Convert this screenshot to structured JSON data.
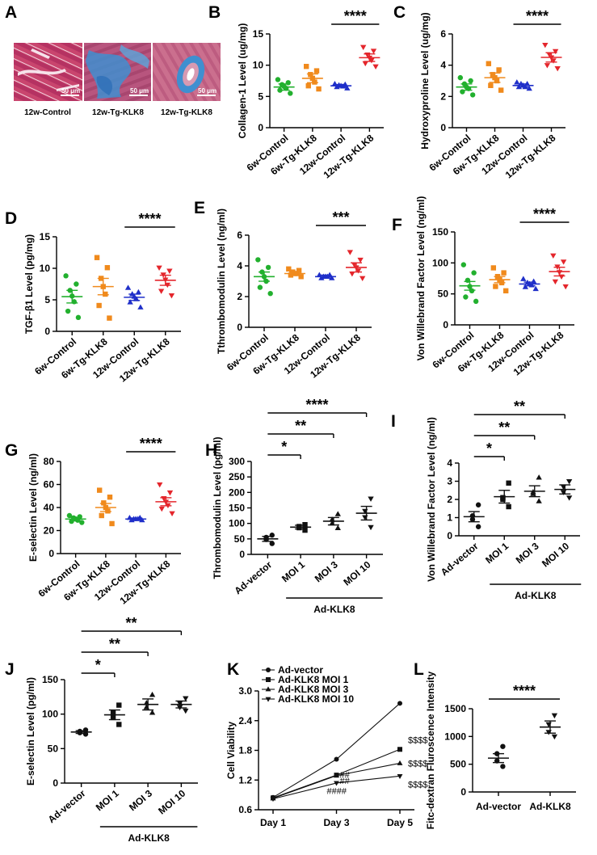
{
  "figure": {
    "colors": {
      "green": "#22b02e",
      "orange": "#f08a1c",
      "blue": "#1f2fc9",
      "red": "#e4262c",
      "black": "#111111"
    }
  },
  "micrographs": {
    "label": "A",
    "scale_bar": "50 μm",
    "captions": [
      "12w-Control",
      "12w-Tg-KLK8",
      "12w-Tg-KLK8"
    ],
    "image_names": [
      "trichrome-control-image",
      "trichrome-klk8-perivascular-image",
      "trichrome-klk8-vessel-image"
    ]
  },
  "chart_data": [
    {
      "id": "B",
      "label": "B",
      "type": "scatter",
      "ylabel": "Collagen-1 Level (ug/mg)",
      "ylim": [
        0,
        15
      ],
      "yticks": [
        0,
        5,
        10,
        15
      ],
      "categories": [
        "6w-Control",
        "6w-Tg-KLK8",
        "12w-Control",
        "12w-Tg-KLK8"
      ],
      "colors": [
        "#22b02e",
        "#f08a1c",
        "#1f2fc9",
        "#e4262c"
      ],
      "markers": [
        "circle",
        "square",
        "triangle-up",
        "triangle-down"
      ],
      "means": [
        6.5,
        7.9,
        6.7,
        11.2
      ],
      "sems": [
        0.5,
        0.7,
        0.2,
        0.6
      ],
      "points": [
        [
          5.5,
          6.0,
          6.3,
          6.6,
          6.9,
          7.2,
          7.7
        ],
        [
          6.2,
          6.7,
          7.3,
          7.9,
          8.5,
          9.1,
          9.8
        ],
        [
          6.3,
          6.5,
          6.6,
          6.7,
          6.8,
          6.9,
          7.0
        ],
        [
          9.8,
          10.3,
          10.8,
          11.2,
          11.7,
          12.3,
          12.9
        ]
      ],
      "brackets": [
        {
          "from": 2,
          "to": 3,
          "label": "****"
        }
      ]
    },
    {
      "id": "C",
      "label": "C",
      "type": "scatter",
      "ylabel": "Hydroxyproline Level (ug/mg)",
      "ylim": [
        0,
        6
      ],
      "yticks": [
        0,
        2,
        4,
        6
      ],
      "categories": [
        "6w-Control",
        "6w-Tg-KLK8",
        "12w-Control",
        "12w-Tg-KLK8"
      ],
      "colors": [
        "#22b02e",
        "#f08a1c",
        "#1f2fc9",
        "#e4262c"
      ],
      "markers": [
        "circle",
        "square",
        "triangle-up",
        "triangle-down"
      ],
      "means": [
        2.6,
        3.2,
        2.7,
        4.5
      ],
      "sems": [
        0.2,
        0.3,
        0.1,
        0.3
      ],
      "points": [
        [
          2.1,
          2.3,
          2.5,
          2.6,
          2.8,
          3.0,
          3.2
        ],
        [
          2.4,
          2.7,
          3.0,
          3.2,
          3.4,
          3.7,
          4.1
        ],
        [
          2.5,
          2.6,
          2.6,
          2.7,
          2.8,
          2.8,
          2.9
        ],
        [
          3.8,
          4.0,
          4.3,
          4.5,
          4.7,
          4.9,
          5.3
        ]
      ],
      "brackets": [
        {
          "from": 2,
          "to": 3,
          "label": "****"
        }
      ]
    },
    {
      "id": "D",
      "label": "D",
      "type": "scatter",
      "ylabel": "TGF-β1 Level (pg/mg)",
      "ylim": [
        0,
        15
      ],
      "yticks": [
        0,
        5,
        10,
        15
      ],
      "categories": [
        "6w-Control",
        "6w-Tg-KLK8",
        "12w-Control",
        "12w-Tg-KLK8"
      ],
      "colors": [
        "#22b02e",
        "#f08a1c",
        "#1f2fc9",
        "#e4262c"
      ],
      "markers": [
        "circle",
        "square",
        "triangle-up",
        "triangle-down"
      ],
      "means": [
        5.5,
        7.1,
        5.4,
        8.1
      ],
      "sems": [
        1.0,
        1.3,
        0.5,
        0.8
      ],
      "points": [
        [
          2.2,
          3.2,
          4.7,
          5.6,
          6.5,
          7.5,
          8.8
        ],
        [
          2.1,
          4.1,
          5.9,
          7.1,
          8.4,
          10.1,
          11.7
        ],
        [
          3.8,
          4.6,
          5.1,
          5.5,
          5.9,
          6.2,
          6.9
        ],
        [
          5.7,
          6.4,
          7.4,
          8.2,
          9.0,
          9.6,
          10.1
        ]
      ],
      "brackets": [
        {
          "from": 2,
          "to": 3,
          "label": "****"
        }
      ]
    },
    {
      "id": "E",
      "label": "E",
      "type": "scatter",
      "ylabel": "Tthrombomodulin Level (ng/ml)",
      "ylim": [
        0,
        6
      ],
      "yticks": [
        0,
        2,
        4,
        6
      ],
      "categories": [
        "6w-Control",
        "6w-Tg-KLK8",
        "12w-Control",
        "12w-Tg-KLK8"
      ],
      "colors": [
        "#22b02e",
        "#f08a1c",
        "#1f2fc9",
        "#e4262c"
      ],
      "markers": [
        "circle",
        "square",
        "triangle-up",
        "triangle-down"
      ],
      "means": [
        3.3,
        3.5,
        3.3,
        3.9
      ],
      "sems": [
        0.3,
        0.1,
        0.1,
        0.3
      ],
      "points": [
        [
          2.2,
          2.6,
          3.0,
          3.3,
          3.6,
          3.9,
          4.4
        ],
        [
          3.3,
          3.4,
          3.5,
          3.5,
          3.6,
          3.7,
          3.8
        ],
        [
          3.2,
          3.2,
          3.3,
          3.3,
          3.3,
          3.4,
          3.4
        ],
        [
          3.2,
          3.5,
          3.7,
          3.9,
          4.1,
          4.4,
          4.9
        ]
      ],
      "brackets": [
        {
          "from": 2,
          "to": 3,
          "label": "***"
        }
      ]
    },
    {
      "id": "F",
      "label": "F",
      "type": "scatter",
      "ylabel": "Von Willebrand Factor Level (ng/ml)",
      "ylim": [
        0,
        150
      ],
      "yticks": [
        0,
        50,
        100,
        150
      ],
      "categories": [
        "6w-Control",
        "6w-Tg-KLK8",
        "12w-Control",
        "12w-Tg-KLK8"
      ],
      "colors": [
        "#22b02e",
        "#f08a1c",
        "#1f2fc9",
        "#e4262c"
      ],
      "markers": [
        "circle",
        "square",
        "triangle-up",
        "triangle-down"
      ],
      "means": [
        63,
        73,
        66,
        86
      ],
      "sems": [
        7,
        5,
        3,
        7
      ],
      "points": [
        [
          38,
          45,
          55,
          62,
          72,
          84,
          97
        ],
        [
          55,
          62,
          68,
          73,
          78,
          84,
          92
        ],
        [
          58,
          61,
          64,
          66,
          68,
          70,
          74
        ],
        [
          62,
          70,
          78,
          85,
          94,
          102,
          112
        ]
      ],
      "brackets": [
        {
          "from": 2,
          "to": 3,
          "label": "****"
        }
      ]
    },
    {
      "id": "G",
      "label": "G",
      "type": "scatter",
      "ylabel": "E-selectin Level (ng/ml)",
      "ylim": [
        0,
        80
      ],
      "yticks": [
        0,
        20,
        40,
        60,
        80
      ],
      "categories": [
        "6w-Control",
        "6w-Tg-KLK8",
        "12w-Control",
        "12w-Tg-KLK8"
      ],
      "colors": [
        "#22b02e",
        "#f08a1c",
        "#1f2fc9",
        "#e4262c"
      ],
      "markers": [
        "circle",
        "square",
        "triangle-up",
        "triangle-down"
      ],
      "means": [
        30,
        40,
        30,
        45
      ],
      "sems": [
        1.5,
        3.5,
        0.8,
        3.5
      ],
      "points": [
        [
          27,
          28,
          29,
          30,
          31,
          32,
          33
        ],
        [
          26,
          33,
          37,
          40,
          44,
          49,
          55
        ],
        [
          29,
          29,
          30,
          30,
          30,
          31,
          31
        ],
        [
          35,
          39,
          42,
          45,
          48,
          53,
          60
        ]
      ],
      "brackets": [
        {
          "from": 2,
          "to": 3,
          "label": "****"
        }
      ]
    },
    {
      "id": "H",
      "label": "H",
      "type": "scatter",
      "ylabel": "Thrombomodulin Level (pg/ml)",
      "ylim": [
        0,
        300
      ],
      "yticks": [
        0,
        50,
        100,
        150,
        200,
        250,
        300
      ],
      "categories": [
        "Ad-vector",
        "MOI 1",
        "MOI 3",
        "MOI 10"
      ],
      "colors": [
        "#111111",
        "#111111",
        "#111111",
        "#111111"
      ],
      "markers": [
        "circle",
        "square",
        "triangle-up",
        "triangle-down"
      ],
      "means": [
        50,
        88,
        107,
        133
      ],
      "sems": [
        8,
        6,
        12,
        22
      ],
      "points": [
        [
          35,
          48,
          55,
          62
        ],
        [
          78,
          86,
          90,
          96
        ],
        [
          85,
          100,
          112,
          130
        ],
        [
          88,
          120,
          140,
          180
        ]
      ],
      "brackets": [
        {
          "from": 0,
          "to": 1,
          "label": "*"
        },
        {
          "from": 0,
          "to": 2,
          "label": "**"
        },
        {
          "from": 0,
          "to": 3,
          "label": "****"
        }
      ],
      "group_label": "Ad-KLK8"
    },
    {
      "id": "I",
      "label": "I",
      "type": "scatter",
      "ylabel": "Von Willebrand Factor Level (ng/ml)",
      "ylim": [
        0,
        4
      ],
      "yticks": [
        0,
        1,
        2,
        3,
        4
      ],
      "categories": [
        "Ad-vector",
        "MOI 1",
        "MOI 3",
        "MOI 10"
      ],
      "colors": [
        "#111111",
        "#111111",
        "#111111",
        "#111111"
      ],
      "markers": [
        "circle",
        "square",
        "triangle-up",
        "triangle-down"
      ],
      "means": [
        1.05,
        2.15,
        2.45,
        2.55
      ],
      "sems": [
        0.28,
        0.35,
        0.3,
        0.25
      ],
      "points": [
        [
          0.5,
          0.9,
          1.1,
          1.7
        ],
        [
          1.6,
          2.0,
          2.1,
          2.9
        ],
        [
          1.9,
          2.3,
          2.4,
          3.2
        ],
        [
          2.1,
          2.4,
          2.7,
          3.0
        ]
      ],
      "brackets": [
        {
          "from": 0,
          "to": 1,
          "label": "*"
        },
        {
          "from": 0,
          "to": 2,
          "label": "**"
        },
        {
          "from": 0,
          "to": 3,
          "label": "**"
        }
      ],
      "group_label": "Ad-KLK8"
    },
    {
      "id": "J",
      "label": "J",
      "type": "scatter",
      "ylabel": "E-selectin Level (pg/ml)",
      "ylim": [
        0,
        150
      ],
      "yticks": [
        0,
        50,
        100,
        150
      ],
      "categories": [
        "Ad-vector",
        "MOI 1",
        "MOI 3",
        "MOI 10"
      ],
      "colors": [
        "#111111",
        "#111111",
        "#111111",
        "#111111"
      ],
      "markers": [
        "circle",
        "square",
        "triangle-up",
        "triangle-down"
      ],
      "means": [
        74,
        99,
        114,
        114
      ],
      "sems": [
        2,
        7,
        8,
        5
      ],
      "points": [
        [
          71,
          73,
          75,
          77
        ],
        [
          85,
          95,
          102,
          113
        ],
        [
          102,
          110,
          116,
          128
        ],
        [
          105,
          110,
          116,
          123
        ]
      ],
      "brackets": [
        {
          "from": 0,
          "to": 1,
          "label": "*"
        },
        {
          "from": 0,
          "to": 2,
          "label": "**"
        },
        {
          "from": 0,
          "to": 3,
          "label": "**"
        }
      ],
      "group_label": "Ad-KLK8"
    },
    {
      "id": "K",
      "label": "K",
      "type": "line",
      "ylabel": "Cell Viability",
      "ylim": [
        0.6,
        3.0
      ],
      "yticks": [
        0.6,
        1.2,
        1.8,
        2.4,
        3.0
      ],
      "x": [
        "Day 1",
        "Day 3",
        "Day 5"
      ],
      "series": [
        {
          "name": "Ad-vector",
          "marker": "circle",
          "values": [
            0.85,
            1.62,
            2.75
          ],
          "annot": [
            "",
            "",
            ""
          ]
        },
        {
          "name": "Ad-KLK8 MOI 1",
          "marker": "square",
          "values": [
            0.84,
            1.3,
            1.82
          ],
          "annot": [
            "",
            "",
            "$$$$"
          ]
        },
        {
          "name": "Ad-KLK8 MOI 3",
          "marker": "triangle-up",
          "values": [
            0.83,
            1.29,
            1.54
          ],
          "annot": [
            "",
            "##",
            "$$$$"
          ]
        },
        {
          "name": "Ad-KLK8 MOI 10",
          "marker": "triangle-down",
          "values": [
            0.82,
            1.14,
            1.28
          ],
          "annot": [
            "",
            "##",
            "$$$$"
          ]
        }
      ],
      "extra_annot": {
        "text": "####",
        "x": 1,
        "y": 0.98
      }
    },
    {
      "id": "L",
      "label": "L",
      "type": "scatter",
      "ylabel": "Fitc-dextran Fluroscence Intensity",
      "ylim": [
        0,
        1500
      ],
      "yticks": [
        0,
        500,
        1000,
        1500
      ],
      "categories": [
        "Ad-vector",
        "Ad-KLK8"
      ],
      "colors": [
        "#111111",
        "#111111"
      ],
      "markers": [
        "circle",
        "triangle-down"
      ],
      "means": [
        610,
        1170
      ],
      "sems": [
        80,
        110
      ],
      "points": [
        [
          460,
          560,
          690,
          820
        ],
        [
          1000,
          1080,
          1220,
          1380
        ]
      ],
      "brackets": [
        {
          "from": 0,
          "to": 1,
          "label": "****"
        }
      ]
    }
  ]
}
